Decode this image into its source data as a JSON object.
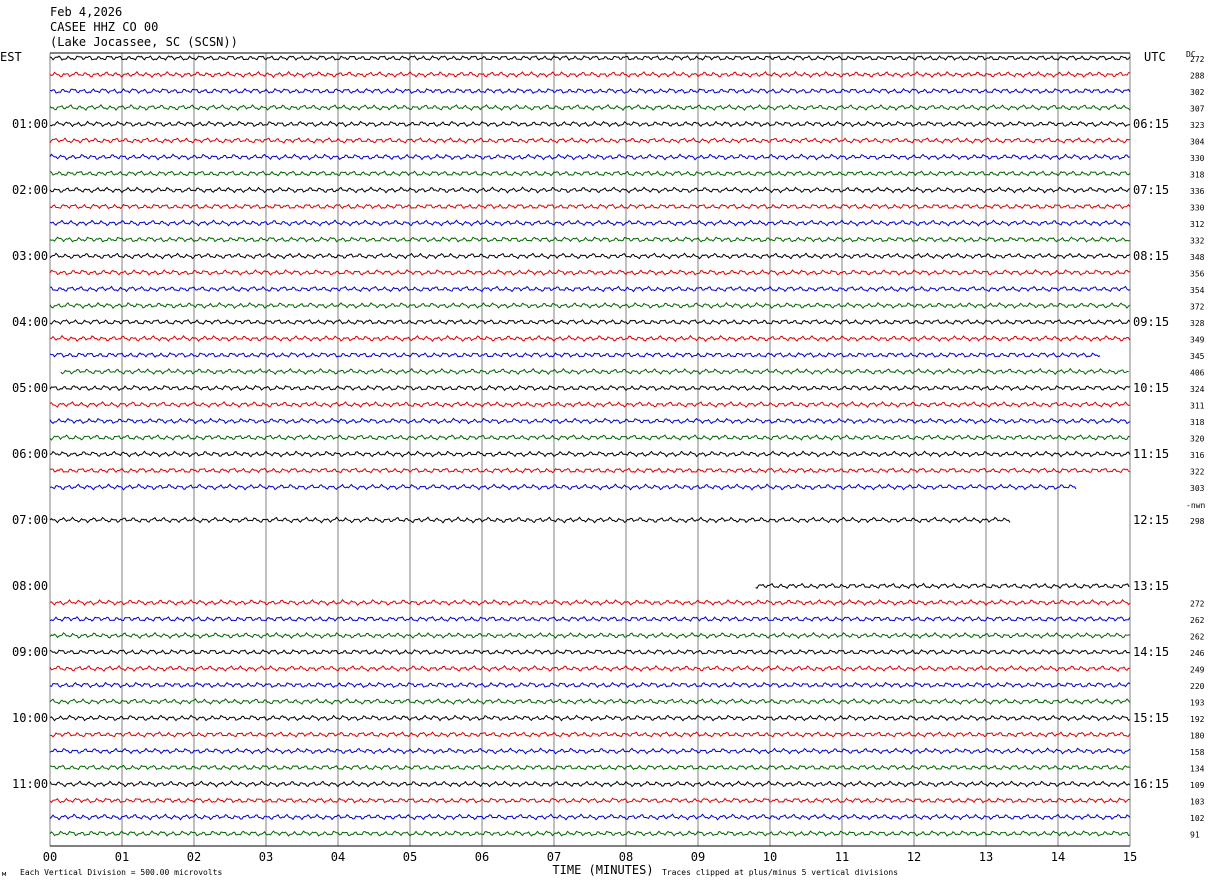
{
  "header": {
    "line1": "Feb 4,2026",
    "line2": "CASEE HHZ CO 00",
    "line3": "(Lake Jocassee, SC (SCSN))"
  },
  "labels": {
    "left_tz": "EST",
    "right_tz": "UTC",
    "dc_header": "DC",
    "xlabel": "TIME (MINUTES)",
    "footer_left": "Each Vertical Division =  500.00 microvolts",
    "footer_right": "Traces clipped at plus/minus 5 vertical divisions",
    "nwn_note": "-nwn"
  },
  "colors": {
    "cycle": [
      "#000000",
      "#dd0000",
      "#0000cc",
      "#006600"
    ],
    "grid": "#808080"
  },
  "chart_data": {
    "type": "line",
    "title": "CASEE HHZ CO 00",
    "xlabel": "TIME (MINUTES)",
    "xlim": [
      0,
      15
    ],
    "x_ticks": [
      "00",
      "01",
      "02",
      "03",
      "04",
      "05",
      "06",
      "07",
      "08",
      "09",
      "10",
      "11",
      "12",
      "13",
      "14",
      "15"
    ],
    "left_time_labels": [
      "01:00",
      "02:00",
      "03:00",
      "04:00",
      "05:00",
      "06:00",
      "07:00",
      "08:00",
      "09:00",
      "10:00",
      "11:00"
    ],
    "right_time_labels": [
      "06:15",
      "07:15",
      "08:15",
      "09:15",
      "10:15",
      "11:15",
      "12:15",
      "13:15",
      "14:15",
      "15:15",
      "16:15"
    ],
    "traces": [
      {
        "dc": "272",
        "start": 0,
        "end": 15
      },
      {
        "dc": "288",
        "start": 0,
        "end": 15
      },
      {
        "dc": "302",
        "start": 0,
        "end": 15
      },
      {
        "dc": "307",
        "start": 0,
        "end": 15
      },
      {
        "dc": "323",
        "start": 0,
        "end": 15
      },
      {
        "dc": "304",
        "start": 0,
        "end": 15
      },
      {
        "dc": "330",
        "start": 0,
        "end": 15
      },
      {
        "dc": "318",
        "start": 0,
        "end": 15
      },
      {
        "dc": "336",
        "start": 0,
        "end": 15
      },
      {
        "dc": "330",
        "start": 0,
        "end": 15
      },
      {
        "dc": "312",
        "start": 0,
        "end": 15
      },
      {
        "dc": "332",
        "start": 0,
        "end": 15
      },
      {
        "dc": "348",
        "start": 0,
        "end": 15
      },
      {
        "dc": "356",
        "start": 0,
        "end": 15
      },
      {
        "dc": "354",
        "start": 0,
        "end": 15
      },
      {
        "dc": "372",
        "start": 0,
        "end": 15
      },
      {
        "dc": "328",
        "start": 0,
        "end": 15
      },
      {
        "dc": "349",
        "start": 0,
        "end": 15
      },
      {
        "dc": "345",
        "start": 0,
        "end": 14.6
      },
      {
        "dc": "406",
        "start": 0.15,
        "end": 15
      },
      {
        "dc": "324",
        "start": 0,
        "end": 15
      },
      {
        "dc": "311",
        "start": 0,
        "end": 15
      },
      {
        "dc": "318",
        "start": 0,
        "end": 15
      },
      {
        "dc": "320",
        "start": 0,
        "end": 15
      },
      {
        "dc": "316",
        "start": 0,
        "end": 15
      },
      {
        "dc": "322",
        "start": 0,
        "end": 15
      },
      {
        "dc": "303",
        "start": 0,
        "end": 14.25
      },
      {
        "dc": "",
        "start": null,
        "end": null
      },
      {
        "dc": "298",
        "start": 0,
        "end": 13.35
      },
      {
        "dc": "",
        "start": null,
        "end": null
      },
      {
        "dc": "",
        "start": null,
        "end": null
      },
      {
        "dc": "",
        "start": null,
        "end": null
      },
      {
        "dc": "",
        "start": 9.8,
        "end": 15
      },
      {
        "dc": "272",
        "start": 0,
        "end": 15
      },
      {
        "dc": "262",
        "start": 0,
        "end": 15
      },
      {
        "dc": "262",
        "start": 0,
        "end": 15
      },
      {
        "dc": "246",
        "start": 0,
        "end": 15
      },
      {
        "dc": "249",
        "start": 0,
        "end": 15
      },
      {
        "dc": "220",
        "start": 0,
        "end": 15
      },
      {
        "dc": "193",
        "start": 0,
        "end": 15
      },
      {
        "dc": "192",
        "start": 0,
        "end": 15
      },
      {
        "dc": "180",
        "start": 0,
        "end": 15
      },
      {
        "dc": "158",
        "start": 0,
        "end": 15
      },
      {
        "dc": "134",
        "start": 0,
        "end": 15
      },
      {
        "dc": "109",
        "start": 0,
        "end": 15
      },
      {
        "dc": "103",
        "start": 0,
        "end": 15
      },
      {
        "dc": "102",
        "start": 0,
        "end": 15
      },
      {
        "dc": "91",
        "start": 0,
        "end": 15
      }
    ]
  }
}
